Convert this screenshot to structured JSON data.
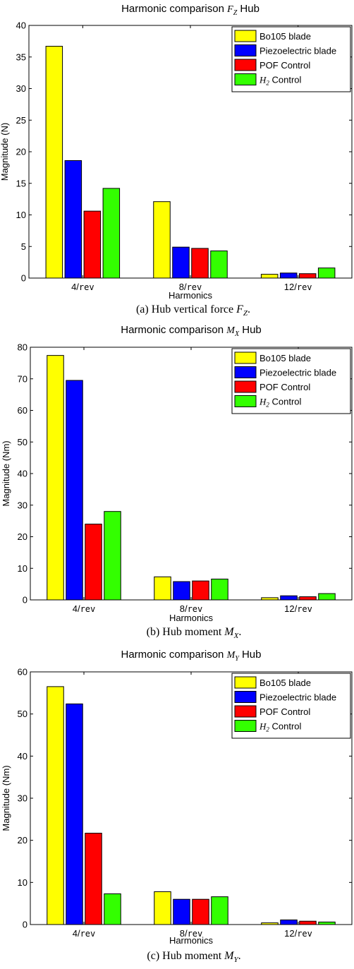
{
  "chart_data": [
    {
      "type": "bar",
      "title": "Harmonic comparison",
      "title_symbol": "F",
      "title_subscript": "Z",
      "title_suffix": "Hub",
      "ylabel": "Magnitude (N)",
      "xlabel": "Harmonics",
      "ylim": [
        0,
        40
      ],
      "yticks": [
        0,
        5,
        10,
        15,
        20,
        25,
        30,
        35,
        40
      ],
      "categories": [
        "4/rev",
        "8/rev",
        "12/rev"
      ],
      "series": [
        {
          "name": "Bo105 blade",
          "color": "#ffff00",
          "values": [
            36.7,
            12.1,
            0.6
          ]
        },
        {
          "name": "Piezoelectric blade",
          "color": "#0000ff",
          "values": [
            18.6,
            4.9,
            0.8
          ]
        },
        {
          "name": "POF Control",
          "color": "#ff0000",
          "values": [
            10.6,
            4.7,
            0.7
          ]
        },
        {
          "name": "H2 Control",
          "color": "#33ff00",
          "values": [
            14.2,
            4.3,
            1.6
          ]
        }
      ],
      "legend": "top-right",
      "caption": "(a) Hub vertical force F",
      "caption_subscript": "Z",
      "caption_suffix": "."
    },
    {
      "type": "bar",
      "title": "Harmonic comparison",
      "title_symbol": "M",
      "title_subscript": "X",
      "title_suffix": "Hub",
      "ylabel": "Magnitude (Nm)",
      "xlabel": "Harmonics",
      "ylim": [
        0,
        80
      ],
      "yticks": [
        0,
        10,
        20,
        30,
        40,
        50,
        60,
        70,
        80
      ],
      "categories": [
        "4/rev",
        "8/rev",
        "12/rev"
      ],
      "series": [
        {
          "name": "Bo105 blade",
          "color": "#ffff00",
          "values": [
            77.4,
            7.3,
            0.7
          ]
        },
        {
          "name": "Piezoelectric blade",
          "color": "#0000ff",
          "values": [
            69.5,
            5.8,
            1.3
          ]
        },
        {
          "name": "POF Control",
          "color": "#ff0000",
          "values": [
            24.0,
            6.0,
            1.0
          ]
        },
        {
          "name": "H2 Control",
          "color": "#33ff00",
          "values": [
            28.0,
            6.6,
            2.0
          ]
        }
      ],
      "legend": "top-right",
      "caption": "(b) Hub moment M",
      "caption_subscript": "X",
      "caption_suffix": "."
    },
    {
      "type": "bar",
      "title": "Harmonic comparison",
      "title_symbol": "M",
      "title_subscript": "Y",
      "title_suffix": "Hub",
      "ylabel": "Magnitude (Nm)",
      "xlabel": "Harmonics",
      "ylim": [
        0,
        60
      ],
      "yticks": [
        0,
        10,
        20,
        30,
        40,
        50,
        60
      ],
      "categories": [
        "4/rev",
        "8/rev",
        "12/rev"
      ],
      "series": [
        {
          "name": "Bo105 blade",
          "color": "#ffff00",
          "values": [
            56.5,
            7.8,
            0.4
          ]
        },
        {
          "name": "Piezoelectric blade",
          "color": "#0000ff",
          "values": [
            52.4,
            6.0,
            1.1
          ]
        },
        {
          "name": "POF Control",
          "color": "#ff0000",
          "values": [
            21.7,
            6.0,
            0.8
          ]
        },
        {
          "name": "H2 Control",
          "color": "#33ff00",
          "values": [
            7.3,
            6.6,
            0.6
          ]
        }
      ],
      "legend": "top-right",
      "caption": "(c) Hub moment M",
      "caption_subscript": "Y",
      "caption_suffix": "."
    }
  ]
}
